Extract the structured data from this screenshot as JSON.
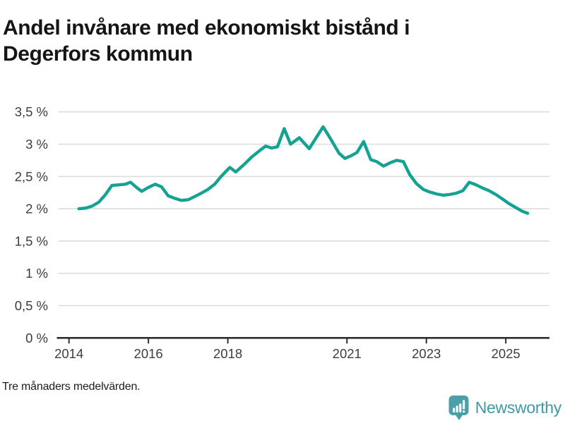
{
  "header": {
    "title": "Andel invånare med ekonomiskt bistånd i Degerfors kommun"
  },
  "footer": {
    "note": "Tre månaders medelvärden.",
    "brand": "Newsworthy"
  },
  "colors": {
    "line": "#14a292",
    "grid": "#dcdcdc",
    "axis": "#2f2f2f",
    "tick_label": "#3d3d3d",
    "brand_teal": "#4a9fa8",
    "title": "#151515"
  },
  "chart_data": {
    "type": "line",
    "title": "Andel invånare med ekonomiskt bistånd i Degerfors kommun",
    "subtitle": "Tre månaders medelvärden.",
    "xlabel": "",
    "ylabel": "",
    "unit": "%",
    "xlim": [
      2013.73,
      2026.1
    ],
    "ylim": [
      0,
      3.5
    ],
    "grid": true,
    "legend_position": "none",
    "y_ticks": [
      {
        "v": 0,
        "label": "0 %"
      },
      {
        "v": 0.5,
        "label": "0,5 %"
      },
      {
        "v": 1,
        "label": "1 %"
      },
      {
        "v": 1.5,
        "label": "1,5 %"
      },
      {
        "v": 2,
        "label": "2 %"
      },
      {
        "v": 2.5,
        "label": "2,5 %"
      },
      {
        "v": 3,
        "label": "3 %"
      },
      {
        "v": 3.5,
        "label": "3,5 %"
      }
    ],
    "x_ticks": [
      {
        "v": 2014,
        "label": "2014"
      },
      {
        "v": 2016,
        "label": "2016"
      },
      {
        "v": 2018,
        "label": "2018"
      },
      {
        "v": 2021,
        "label": "2021"
      },
      {
        "v": 2023,
        "label": "2023"
      },
      {
        "v": 2025,
        "label": "2025"
      }
    ],
    "series": [
      {
        "name": "Andel invånare med ekonomiskt bistånd",
        "points": [
          [
            2014.25,
            2.0
          ],
          [
            2014.42,
            2.01
          ],
          [
            2014.58,
            2.04
          ],
          [
            2014.75,
            2.1
          ],
          [
            2014.92,
            2.22
          ],
          [
            2015.08,
            2.36
          ],
          [
            2015.25,
            2.37
          ],
          [
            2015.42,
            2.38
          ],
          [
            2015.55,
            2.41
          ],
          [
            2015.7,
            2.33
          ],
          [
            2015.83,
            2.27
          ],
          [
            2016.0,
            2.33
          ],
          [
            2016.17,
            2.38
          ],
          [
            2016.33,
            2.34
          ],
          [
            2016.5,
            2.2
          ],
          [
            2016.67,
            2.16
          ],
          [
            2016.83,
            2.13
          ],
          [
            2017.0,
            2.14
          ],
          [
            2017.17,
            2.19
          ],
          [
            2017.33,
            2.24
          ],
          [
            2017.5,
            2.3
          ],
          [
            2017.67,
            2.38
          ],
          [
            2017.83,
            2.5
          ],
          [
            2018.05,
            2.64
          ],
          [
            2018.2,
            2.57
          ],
          [
            2018.4,
            2.68
          ],
          [
            2018.6,
            2.8
          ],
          [
            2018.8,
            2.9
          ],
          [
            2018.95,
            2.97
          ],
          [
            2019.1,
            2.94
          ],
          [
            2019.25,
            2.96
          ],
          [
            2019.42,
            3.24
          ],
          [
            2019.58,
            3.0
          ],
          [
            2019.8,
            3.1
          ],
          [
            2020.05,
            2.93
          ],
          [
            2020.4,
            3.27
          ],
          [
            2020.6,
            3.07
          ],
          [
            2020.8,
            2.86
          ],
          [
            2020.95,
            2.78
          ],
          [
            2021.1,
            2.82
          ],
          [
            2021.25,
            2.87
          ],
          [
            2021.42,
            3.04
          ],
          [
            2021.6,
            2.76
          ],
          [
            2021.75,
            2.73
          ],
          [
            2021.92,
            2.66
          ],
          [
            2022.08,
            2.71
          ],
          [
            2022.25,
            2.75
          ],
          [
            2022.42,
            2.73
          ],
          [
            2022.58,
            2.53
          ],
          [
            2022.75,
            2.39
          ],
          [
            2022.92,
            2.3
          ],
          [
            2023.08,
            2.26
          ],
          [
            2023.25,
            2.23
          ],
          [
            2023.42,
            2.21
          ],
          [
            2023.58,
            2.22
          ],
          [
            2023.75,
            2.24
          ],
          [
            2023.92,
            2.28
          ],
          [
            2024.08,
            2.41
          ],
          [
            2024.25,
            2.37
          ],
          [
            2024.42,
            2.32
          ],
          [
            2024.58,
            2.28
          ],
          [
            2024.75,
            2.22
          ],
          [
            2024.92,
            2.15
          ],
          [
            2025.08,
            2.08
          ],
          [
            2025.25,
            2.02
          ],
          [
            2025.42,
            1.96
          ],
          [
            2025.55,
            1.93
          ]
        ]
      }
    ]
  }
}
